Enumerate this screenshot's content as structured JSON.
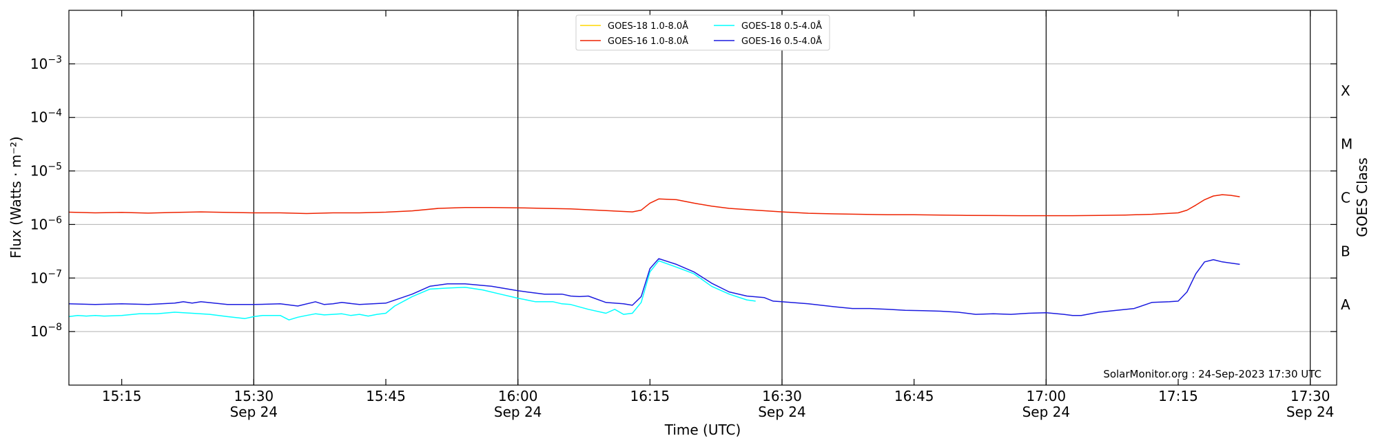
{
  "chart_data": {
    "type": "line",
    "xlabel": "Time (UTC)",
    "ylabel": "Flux (Watts · m⁻²)",
    "ylabel_right": "GOES Class",
    "y_scale": "log",
    "ylim": [
      1e-09,
      0.01
    ],
    "xlim": [
      "15:09:00",
      "17:33:00"
    ],
    "date": "Sep 24",
    "x_ticks": [
      "15:15",
      "15:30",
      "15:45",
      "16:00",
      "16:15",
      "16:30",
      "16:45",
      "17:00",
      "17:15",
      "17:30"
    ],
    "x_tick_dated": [
      "15:30",
      "16:00",
      "16:30",
      "17:00",
      "17:30"
    ],
    "y_ticks": [
      {
        "value": 1e-08,
        "mantissa": "10",
        "exponent": "−8"
      },
      {
        "value": 1e-07,
        "mantissa": "10",
        "exponent": "−7"
      },
      {
        "value": 1e-06,
        "mantissa": "10",
        "exponent": "−6"
      },
      {
        "value": 1e-05,
        "mantissa": "10",
        "exponent": "−5"
      },
      {
        "value": 0.0001,
        "mantissa": "10",
        "exponent": "−4"
      },
      {
        "value": 0.001,
        "mantissa": "10",
        "exponent": "−3"
      }
    ],
    "goes_classes": [
      {
        "label": "A",
        "value": 3.16e-08
      },
      {
        "label": "B",
        "value": 3.16e-07
      },
      {
        "label": "C",
        "value": 3.16e-06
      },
      {
        "label": "M",
        "value": 3.16e-05
      },
      {
        "label": "X",
        "value": 0.000316
      }
    ],
    "grid": "horizontal at decades",
    "legend_position": "top-center",
    "watermark": "SolarMonitor.org : 24-Sep-2023 17:30 UTC",
    "series": [
      {
        "name": "GOES-18 1.0-8.0Å",
        "color": "#ffd700",
        "x": [],
        "y": []
      },
      {
        "name": "GOES-16 1.0-8.0Å",
        "color": "#ee2200",
        "x": [
          "15:09",
          "15:12",
          "15:15",
          "15:18",
          "15:21",
          "15:24",
          "15:27",
          "15:30",
          "15:33",
          "15:36",
          "15:39",
          "15:42",
          "15:45",
          "15:48",
          "15:51",
          "15:54",
          "15:57",
          "16:00",
          "16:03",
          "16:06",
          "16:09",
          "16:12",
          "16:13",
          "16:14",
          "16:15",
          "16:16",
          "16:18",
          "16:20",
          "16:22",
          "16:24",
          "16:27",
          "16:30",
          "16:33",
          "16:36",
          "16:39",
          "16:42",
          "16:45",
          "16:48",
          "16:51",
          "16:54",
          "16:57",
          "17:00",
          "17:03",
          "17:06",
          "17:09",
          "17:12",
          "17:15",
          "17:16",
          "17:17",
          "17:18",
          "17:19",
          "17:20",
          "17:21",
          "17:22"
        ],
        "y": [
          1.7e-06,
          1.65e-06,
          1.68e-06,
          1.63e-06,
          1.68e-06,
          1.72e-06,
          1.68e-06,
          1.65e-06,
          1.65e-06,
          1.6e-06,
          1.65e-06,
          1.65e-06,
          1.7e-06,
          1.8e-06,
          2e-06,
          2.08e-06,
          2.08e-06,
          2.05e-06,
          2e-06,
          1.95e-06,
          1.85e-06,
          1.75e-06,
          1.72e-06,
          1.85e-06,
          2.5e-06,
          3e-06,
          2.9e-06,
          2.5e-06,
          2.2e-06,
          2e-06,
          1.85e-06,
          1.72e-06,
          1.62e-06,
          1.58e-06,
          1.55e-06,
          1.52e-06,
          1.52e-06,
          1.5e-06,
          1.48e-06,
          1.47e-06,
          1.46e-06,
          1.46e-06,
          1.46e-06,
          1.48e-06,
          1.5e-06,
          1.55e-06,
          1.65e-06,
          1.85e-06,
          2.3e-06,
          2.9e-06,
          3.4e-06,
          3.6e-06,
          3.5e-06,
          3.3e-06
        ]
      },
      {
        "name": "GOES-18 0.5-4.0Å",
        "color": "#00ffff",
        "x": [
          "15:09",
          "15:10",
          "15:11",
          "15:12",
          "15:13",
          "15:15",
          "15:17",
          "15:19",
          "15:21",
          "15:23",
          "15:25",
          "15:27",
          "15:29",
          "15:30",
          "15:31",
          "15:33",
          "15:34",
          "15:35",
          "15:36",
          "15:37",
          "15:38",
          "15:39",
          "15:40",
          "15:41",
          "15:42",
          "15:43",
          "15:44",
          "15:45",
          "15:46",
          "15:48",
          "15:50",
          "15:52",
          "15:54",
          "15:56",
          "15:58",
          "16:00",
          "16:02",
          "16:04",
          "16:05",
          "16:06",
          "16:08",
          "16:10",
          "16:11",
          "16:12",
          "16:13",
          "16:14",
          "16:15",
          "16:16",
          "16:18",
          "16:20",
          "16:22",
          "16:24",
          "16:26",
          "16:27"
        ],
        "y": [
          1.9e-08,
          2e-08,
          1.95e-08,
          2e-08,
          1.95e-08,
          2e-08,
          2.15e-08,
          2.15e-08,
          2.3e-08,
          2.2e-08,
          2.1e-08,
          1.9e-08,
          1.75e-08,
          1.9e-08,
          2e-08,
          2e-08,
          1.65e-08,
          1.85e-08,
          2e-08,
          2.15e-08,
          2.05e-08,
          2.1e-08,
          2.15e-08,
          2e-08,
          2.1e-08,
          1.95e-08,
          2.1e-08,
          2.2e-08,
          3e-08,
          4.5e-08,
          6.2e-08,
          6.5e-08,
          6.7e-08,
          6e-08,
          5e-08,
          4.2e-08,
          3.6e-08,
          3.6e-08,
          3.3e-08,
          3.2e-08,
          2.6e-08,
          2.2e-08,
          2.6e-08,
          2.1e-08,
          2.2e-08,
          3.5e-08,
          1.3e-07,
          2.1e-07,
          1.6e-07,
          1.2e-07,
          7e-08,
          5e-08,
          3.9e-08,
          3.7e-08
        ]
      },
      {
        "name": "GOES-16 0.5-4.0Å",
        "color": "#1a1adf",
        "x": [
          "15:09",
          "15:12",
          "15:15",
          "15:18",
          "15:21",
          "15:22",
          "15:23",
          "15:24",
          "15:27",
          "15:30",
          "15:33",
          "15:35",
          "15:37",
          "15:38",
          "15:39",
          "15:40",
          "15:42",
          "15:45",
          "15:48",
          "15:50",
          "15:52",
          "15:54",
          "15:57",
          "16:00",
          "16:01",
          "16:03",
          "16:05",
          "16:06",
          "16:07",
          "16:08",
          "16:10",
          "16:12",
          "16:13",
          "16:14",
          "16:15",
          "16:16",
          "16:18",
          "16:20",
          "16:22",
          "16:24",
          "16:26",
          "16:28",
          "16:29",
          "16:30",
          "16:33",
          "16:36",
          "16:38",
          "16:40",
          "16:42",
          "16:44",
          "16:46",
          "16:48",
          "16:50",
          "16:52",
          "16:54",
          "16:56",
          "16:58",
          "17:00",
          "17:02",
          "17:03",
          "17:04",
          "17:06",
          "17:08",
          "17:10",
          "17:12",
          "17:14",
          "17:15",
          "17:16",
          "17:17",
          "17:18",
          "17:19",
          "17:20",
          "17:22"
        ],
        "y": [
          3.3e-08,
          3.2e-08,
          3.3e-08,
          3.2e-08,
          3.4e-08,
          3.6e-08,
          3.4e-08,
          3.6e-08,
          3.2e-08,
          3.2e-08,
          3.3e-08,
          3e-08,
          3.6e-08,
          3.2e-08,
          3.3e-08,
          3.5e-08,
          3.2e-08,
          3.4e-08,
          5e-08,
          7e-08,
          7.8e-08,
          7.8e-08,
          7e-08,
          5.8e-08,
          5.5e-08,
          5e-08,
          5e-08,
          4.6e-08,
          4.5e-08,
          4.6e-08,
          3.5e-08,
          3.3e-08,
          3.1e-08,
          4.5e-08,
          1.5e-07,
          2.3e-07,
          1.8e-07,
          1.3e-07,
          8e-08,
          5.5e-08,
          4.6e-08,
          4.3e-08,
          3.7e-08,
          3.6e-08,
          3.3e-08,
          2.9e-08,
          2.7e-08,
          2.7e-08,
          2.6e-08,
          2.5e-08,
          2.45e-08,
          2.4e-08,
          2.3e-08,
          2.1e-08,
          2.15e-08,
          2.1e-08,
          2.2e-08,
          2.25e-08,
          2.1e-08,
          2e-08,
          2e-08,
          2.3e-08,
          2.5e-08,
          2.7e-08,
          3.5e-08,
          3.6e-08,
          3.7e-08,
          5.5e-08,
          1.2e-07,
          2e-07,
          2.2e-07,
          2e-07,
          1.8e-07
        ]
      }
    ]
  }
}
